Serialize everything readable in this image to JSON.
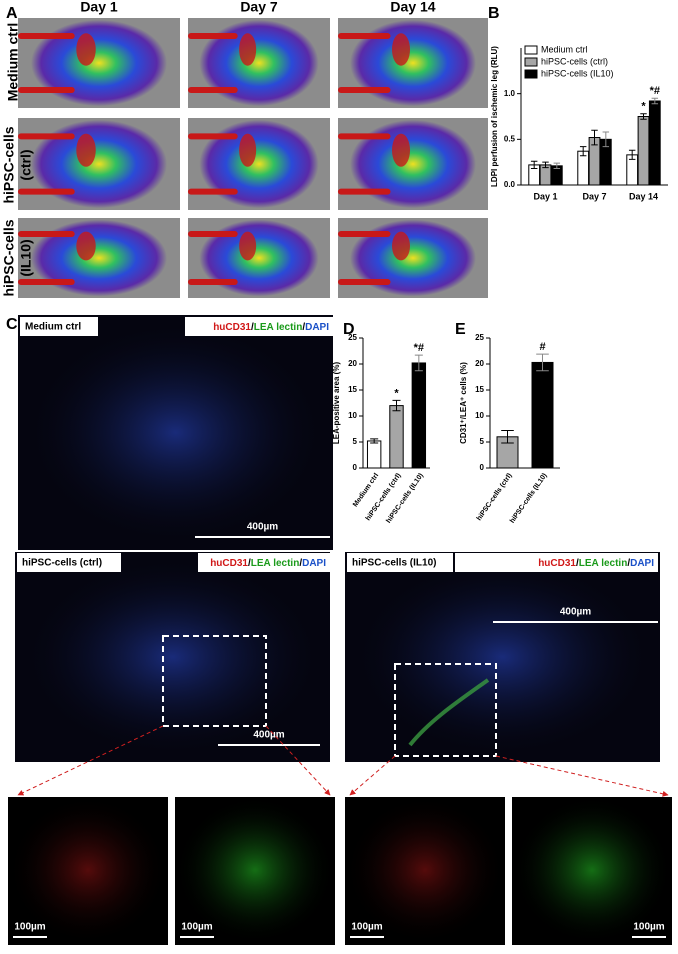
{
  "panel_labels": [
    "A",
    "B",
    "C",
    "D",
    "E"
  ],
  "perfusion_images": {
    "columns": [
      "Day 1",
      "Day 7",
      "Day 14"
    ],
    "rows": [
      {
        "lines": [
          "Medium ctrl"
        ]
      },
      {
        "lines": [
          "hiPSC-cells",
          "(ctrl)"
        ]
      },
      {
        "lines": [
          "hiPSC-cells",
          "(IL10)"
        ]
      }
    ]
  },
  "micrographs": {
    "stain": {
      "parts": [
        "huCD31",
        "/",
        "LEA lectin",
        "/",
        "DAPI"
      ]
    },
    "panels": [
      {
        "label": "Medium ctrl",
        "scale": "400µm"
      },
      {
        "label": "hiPSC-cells (ctrl)",
        "scale": "400µm"
      },
      {
        "label": "hiPSC-cells (IL10)",
        "scale": "400µm"
      }
    ],
    "zoom_scale": "100µm"
  },
  "chart_data": [
    {
      "type": "bar",
      "ylabel": "LDPI perfusion of ischemic leg (RLU)",
      "categories": [
        "Day 1",
        "Day 7",
        "Day 14"
      ],
      "ylim": [
        0,
        1.5
      ],
      "yticks": [
        {
          "value": 0,
          "label": "0.0"
        },
        {
          "value": 0.5,
          "label": "0.5"
        },
        {
          "value": 1,
          "label": "1.0"
        }
      ],
      "series": [
        {
          "name": "Medium ctrl",
          "color": "#ffffff",
          "values": [
            0.22,
            0.37,
            0.33
          ],
          "errors": [
            0.04,
            0.05,
            0.05
          ]
        },
        {
          "name": "hiPSC-cells (ctrl)",
          "color": "#a6a6a6",
          "values": [
            0.22,
            0.52,
            0.75
          ],
          "errors": [
            0.03,
            0.08,
            0.03
          ],
          "significance": [
            null,
            null,
            "*"
          ]
        },
        {
          "name": "hiPSC-cells (IL10)",
          "color": "#000000",
          "values": [
            0.21,
            0.5,
            0.92
          ],
          "errors": [
            0.03,
            0.08,
            0.03
          ],
          "significance": [
            null,
            null,
            "*#"
          ]
        }
      ],
      "legend": "top-left"
    },
    {
      "type": "bar",
      "ylabel": "LEA-positive area (%)",
      "categories": [
        "Medium ctrl",
        "hiPSC-cells (ctrl)",
        "hiPSC-cells (IL10)"
      ],
      "values": [
        5.2,
        12,
        20.2
      ],
      "errors": [
        0.4,
        1,
        1.5
      ],
      "colors": [
        "#ffffff",
        "#a6a6a6",
        "#000000"
      ],
      "significance": [
        null,
        "*",
        "*#"
      ],
      "ylim": [
        0,
        25
      ],
      "yticks": [
        0,
        5,
        10,
        15,
        20,
        25
      ]
    },
    {
      "type": "bar",
      "ylabel": "CD31⁺/LEA⁺ cells (%)",
      "categories": [
        "hiPSC-cells (ctrl)",
        "hiPSC-cells (IL10)"
      ],
      "values": [
        6,
        20.3
      ],
      "errors": [
        1.2,
        1.6
      ],
      "colors": [
        "#a6a6a6",
        "#000000"
      ],
      "significance": [
        null,
        "#"
      ],
      "ylim": [
        0,
        25
      ],
      "yticks": [
        0,
        5,
        10,
        15,
        20,
        25
      ]
    }
  ]
}
